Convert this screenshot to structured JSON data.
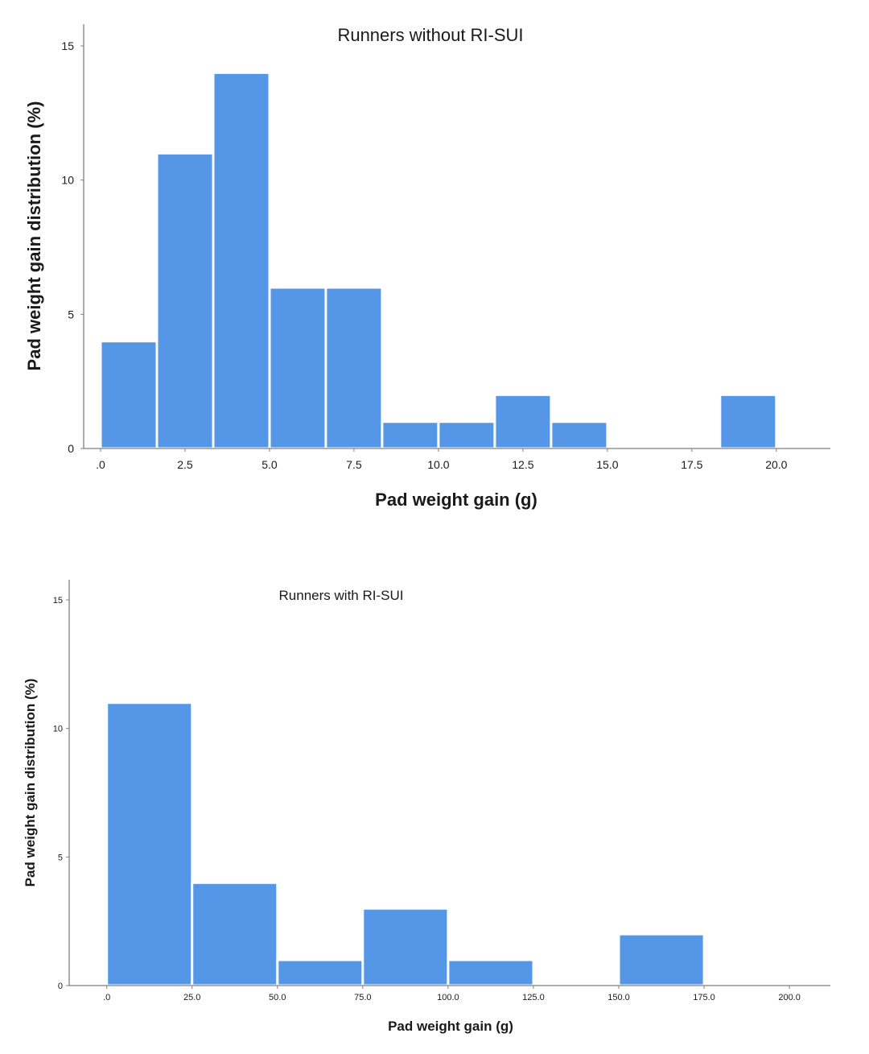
{
  "chart_data": [
    {
      "type": "bar",
      "title": "Runners without RI-SUI",
      "xlabel": "Pad weight gain (g)",
      "ylabel": "Pad weight gain distribution (%)",
      "xlim": [
        -0.5,
        21.6
      ],
      "ylim": [
        0,
        15
      ],
      "xticks": [
        0,
        2.5,
        5,
        7.5,
        10,
        12.5,
        15,
        17.5,
        20
      ],
      "xtick_labels": [
        ".0",
        "2.5",
        "5.0",
        "7.5",
        "10.0",
        "12.5",
        "15.0",
        "17.5",
        "20.0"
      ],
      "yticks": [
        0,
        5,
        10,
        15
      ],
      "ytick_labels": [
        "0",
        "5",
        "10",
        "15"
      ],
      "grid": false,
      "bins": [
        {
          "start": 0.0,
          "end": 1.667,
          "value": 4
        },
        {
          "start": 1.667,
          "end": 3.333,
          "value": 11
        },
        {
          "start": 3.333,
          "end": 5.0,
          "value": 14
        },
        {
          "start": 5.0,
          "end": 6.667,
          "value": 6
        },
        {
          "start": 6.667,
          "end": 8.333,
          "value": 6
        },
        {
          "start": 8.333,
          "end": 10.0,
          "value": 1
        },
        {
          "start": 10.0,
          "end": 11.667,
          "value": 1
        },
        {
          "start": 11.667,
          "end": 13.333,
          "value": 2
        },
        {
          "start": 13.333,
          "end": 15.0,
          "value": 1
        },
        {
          "start": 18.333,
          "end": 20.0,
          "value": 2
        }
      ]
    },
    {
      "type": "bar",
      "title": "Runners with RI-SUI",
      "xlabel": "Pad weight gain (g)",
      "ylabel": "Pad weight gain distribution (%)",
      "xlim": [
        -11,
        212
      ],
      "ylim": [
        0,
        15
      ],
      "xticks": [
        0,
        25,
        50,
        75,
        100,
        125,
        150,
        175,
        200
      ],
      "xtick_labels": [
        ".0",
        "25.0",
        "50.0",
        "75.0",
        "100.0",
        "125.0",
        "150.0",
        "175.0",
        "200.0"
      ],
      "yticks": [
        0,
        5,
        10,
        15
      ],
      "ytick_labels": [
        "0",
        "5",
        "10",
        "15"
      ],
      "grid": false,
      "bins": [
        {
          "start": 0,
          "end": 25,
          "value": 11
        },
        {
          "start": 25,
          "end": 50,
          "value": 4
        },
        {
          "start": 50,
          "end": 75,
          "value": 1
        },
        {
          "start": 75,
          "end": 100,
          "value": 3
        },
        {
          "start": 100,
          "end": 125,
          "value": 1
        },
        {
          "start": 150,
          "end": 175,
          "value": 2
        }
      ]
    }
  ]
}
